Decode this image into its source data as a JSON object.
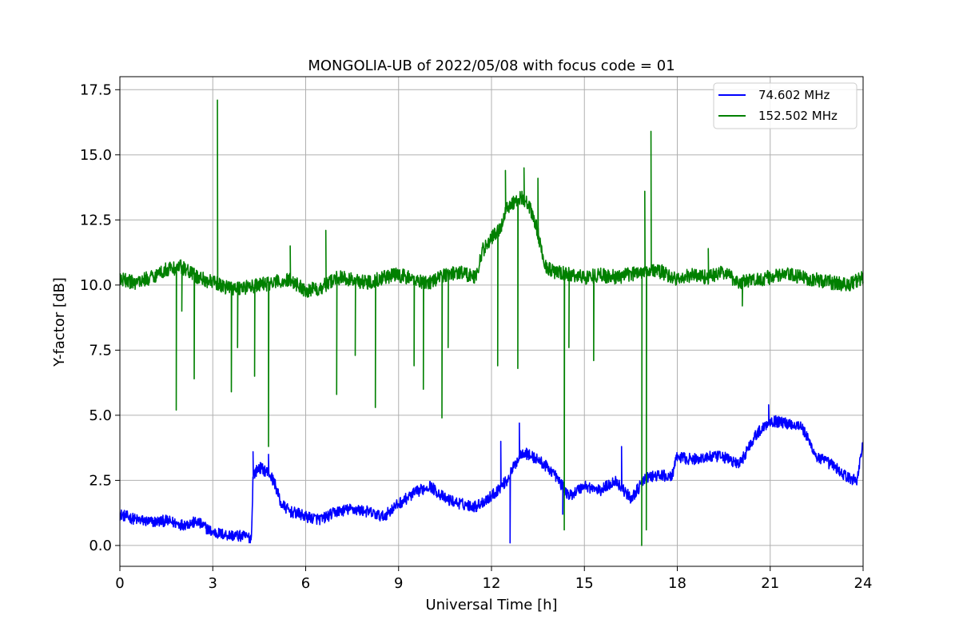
{
  "chart_data": {
    "type": "line",
    "title": "MONGOLIA-UB of 2022/05/08 with focus code = 01",
    "xlabel": "Universal Time [h]",
    "ylabel": "Y-factor [dB]",
    "xlim": [
      0,
      24
    ],
    "ylim": [
      -0.8,
      18.0
    ],
    "xticks": [
      0,
      3,
      6,
      9,
      12,
      15,
      18,
      21,
      24
    ],
    "yticks": [
      0.0,
      2.5,
      5.0,
      7.5,
      10.0,
      12.5,
      15.0,
      17.5
    ],
    "grid": true,
    "legend_position": "top-right",
    "series": [
      {
        "name": " 74.602 MHz",
        "color": "#0000ff",
        "x": [
          0,
          0.5,
          1.0,
          1.5,
          2.0,
          2.5,
          3.0,
          3.5,
          4.0,
          4.25,
          4.3,
          4.5,
          4.8,
          5.0,
          5.2,
          5.5,
          5.8,
          6.0,
          6.5,
          7.0,
          7.5,
          8.0,
          8.5,
          9.0,
          9.5,
          10.0,
          10.5,
          11.0,
          11.5,
          12.0,
          12.5,
          12.8,
          13.0,
          13.5,
          14.0,
          14.5,
          15.0,
          15.5,
          16.0,
          16.5,
          17.0,
          17.5,
          17.8,
          18.0,
          18.5,
          19.0,
          19.5,
          20.0,
          20.5,
          21.0,
          21.5,
          22.0,
          22.5,
          23.0,
          23.5,
          23.8,
          24.0
        ],
        "y": [
          1.2,
          1.0,
          0.9,
          0.95,
          0.8,
          0.9,
          0.5,
          0.4,
          0.35,
          0.3,
          2.7,
          3.0,
          2.8,
          2.4,
          1.6,
          1.3,
          1.2,
          1.1,
          1.0,
          1.3,
          1.4,
          1.3,
          1.1,
          1.6,
          2.0,
          2.3,
          1.8,
          1.6,
          1.5,
          1.9,
          2.5,
          3.2,
          3.6,
          3.3,
          2.8,
          1.9,
          2.3,
          2.1,
          2.5,
          1.8,
          2.6,
          2.7,
          2.6,
          3.4,
          3.3,
          3.4,
          3.4,
          3.1,
          4.2,
          4.8,
          4.7,
          4.6,
          3.4,
          3.1,
          2.6,
          2.5,
          4.0
        ]
      },
      {
        "name": "152.502 MHz",
        "color": "#008000",
        "x": [
          0,
          0.5,
          1.0,
          1.5,
          2.0,
          2.5,
          3.0,
          3.5,
          4.0,
          4.5,
          5.0,
          5.5,
          6.0,
          6.5,
          7.0,
          7.5,
          8.0,
          8.5,
          9.0,
          9.5,
          10.0,
          10.5,
          11.0,
          11.5,
          11.7,
          12.0,
          12.3,
          12.5,
          13.0,
          13.3,
          13.5,
          13.7,
          14.0,
          14.5,
          15.0,
          15.5,
          16.0,
          16.5,
          17.0,
          17.5,
          18.0,
          18.5,
          19.0,
          19.5,
          20.0,
          20.5,
          21.0,
          21.5,
          22.0,
          22.5,
          23.0,
          23.5,
          24.0
        ],
        "y": [
          10.2,
          10.1,
          10.3,
          10.6,
          10.7,
          10.3,
          10.1,
          9.9,
          9.9,
          10.0,
          10.1,
          10.2,
          9.8,
          9.9,
          10.3,
          10.2,
          10.1,
          10.3,
          10.4,
          10.2,
          10.1,
          10.4,
          10.5,
          10.3,
          11.3,
          11.8,
          12.2,
          13.0,
          13.4,
          12.8,
          12.0,
          10.8,
          10.5,
          10.4,
          10.3,
          10.4,
          10.3,
          10.4,
          10.6,
          10.5,
          10.2,
          10.4,
          10.3,
          10.5,
          10.1,
          10.2,
          10.3,
          10.4,
          10.3,
          10.2,
          10.1,
          10.0,
          10.3
        ]
      }
    ],
    "spikes": [
      {
        "series": 1,
        "x": 1.82,
        "y": 5.2
      },
      {
        "series": 1,
        "x": 2.0,
        "y": 9.0
      },
      {
        "series": 1,
        "x": 2.4,
        "y": 6.4
      },
      {
        "series": 1,
        "x": 3.15,
        "y": 17.1
      },
      {
        "series": 1,
        "x": 3.6,
        "y": 5.9
      },
      {
        "series": 1,
        "x": 3.8,
        "y": 7.6
      },
      {
        "series": 1,
        "x": 4.35,
        "y": 6.5
      },
      {
        "series": 1,
        "x": 4.8,
        "y": 3.8
      },
      {
        "series": 1,
        "x": 5.5,
        "y": 11.5
      },
      {
        "series": 1,
        "x": 6.65,
        "y": 12.1
      },
      {
        "series": 1,
        "x": 7.0,
        "y": 5.8
      },
      {
        "series": 1,
        "x": 7.6,
        "y": 7.3
      },
      {
        "series": 1,
        "x": 8.25,
        "y": 5.3
      },
      {
        "series": 1,
        "x": 9.5,
        "y": 6.9
      },
      {
        "series": 1,
        "x": 9.8,
        "y": 6.0
      },
      {
        "series": 1,
        "x": 10.4,
        "y": 4.9
      },
      {
        "series": 1,
        "x": 10.6,
        "y": 7.6
      },
      {
        "series": 1,
        "x": 12.2,
        "y": 6.9
      },
      {
        "series": 1,
        "x": 12.45,
        "y": 14.4
      },
      {
        "series": 1,
        "x": 12.85,
        "y": 6.8
      },
      {
        "series": 1,
        "x": 13.05,
        "y": 14.5
      },
      {
        "series": 1,
        "x": 13.5,
        "y": 14.1
      },
      {
        "series": 1,
        "x": 14.35,
        "y": 0.6
      },
      {
        "series": 1,
        "x": 14.5,
        "y": 7.6
      },
      {
        "series": 1,
        "x": 15.3,
        "y": 7.1
      },
      {
        "series": 1,
        "x": 16.85,
        "y": 0.0
      },
      {
        "series": 1,
        "x": 16.95,
        "y": 13.6
      },
      {
        "series": 1,
        "x": 17.0,
        "y": 0.6
      },
      {
        "series": 1,
        "x": 17.15,
        "y": 15.9
      },
      {
        "series": 1,
        "x": 19.0,
        "y": 11.4
      },
      {
        "series": 1,
        "x": 20.1,
        "y": 9.2
      },
      {
        "series": 0,
        "x": 4.3,
        "y": 3.6
      },
      {
        "series": 0,
        "x": 4.8,
        "y": 3.5
      },
      {
        "series": 0,
        "x": 12.3,
        "y": 4.0
      },
      {
        "series": 0,
        "x": 12.6,
        "y": 0.1
      },
      {
        "series": 0,
        "x": 12.9,
        "y": 4.7
      },
      {
        "series": 0,
        "x": 14.3,
        "y": 1.2
      },
      {
        "series": 0,
        "x": 16.2,
        "y": 3.8
      },
      {
        "series": 0,
        "x": 20.95,
        "y": 5.4
      }
    ]
  }
}
